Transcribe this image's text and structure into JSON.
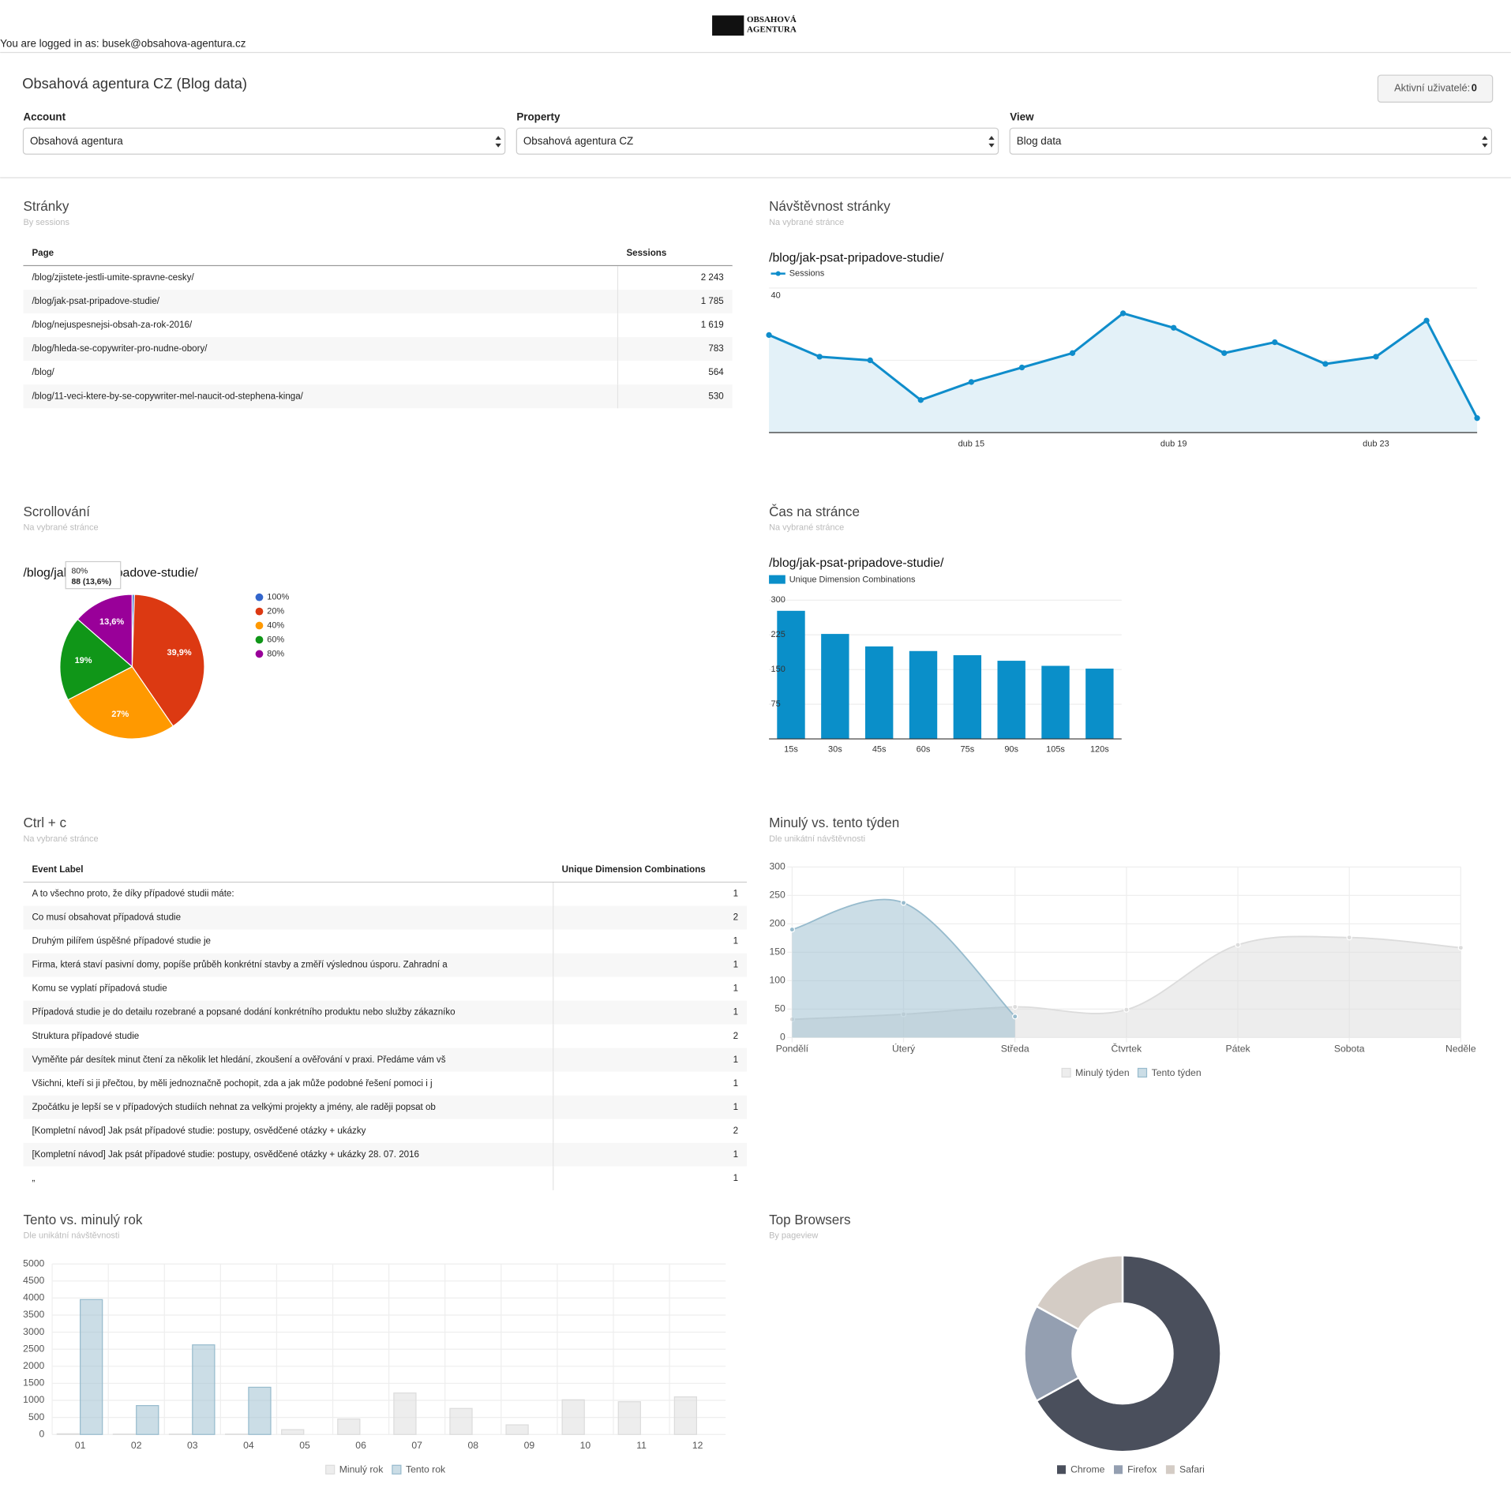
{
  "header": {
    "logo": [
      "OBSAHOVÁ",
      "AGENTURA"
    ],
    "logged_in": "You are logged in as: busek@obsahova-agentura.cz"
  },
  "title": "Obsahová agentura CZ (Blog data)",
  "active_users": {
    "label": "Aktivní uživatelé:",
    "value": 0
  },
  "filters": [
    {
      "label": "Account",
      "value": "Obsahová agentura"
    },
    {
      "label": "Property",
      "value": "Obsahová agentura CZ"
    },
    {
      "label": "View",
      "value": "Blog data"
    }
  ],
  "pages_table": {
    "title": "Stránky",
    "subtitle": "By sessions",
    "columns": [
      "Page",
      "Sessions"
    ],
    "rows": [
      [
        "/blog/zjistete-jestli-umite-spravne-cesky/",
        "2 243"
      ],
      [
        "/blog/jak-psat-pripadove-studie/",
        "1 785"
      ],
      [
        "/blog/nejuspesnejsi-obsah-za-rok-2016/",
        "1 619"
      ],
      [
        "/blog/hleda-se-copywriter-pro-nudne-obory/",
        "783"
      ],
      [
        "/blog/",
        "564"
      ],
      [
        "/blog/11-veci-ktere-by-se-copywriter-mel-naucit-od-stephena-kinga/",
        "530"
      ]
    ]
  },
  "ctrl_table": {
    "title": "Ctrl + c",
    "subtitle": "Na vybrané stránce",
    "columns": [
      "Event Label",
      "Unique Dimension Combinations"
    ],
    "rows": [
      [
        "A to všechno proto, že díky případové studii máte:",
        "1"
      ],
      [
        "Co musí obsahovat případová studie",
        "2"
      ],
      [
        "Druhým pilířem úspěšné případové studie je",
        "1"
      ],
      [
        "Firma, která staví pasivní domy, popíše průběh konkrétní stavby a změří výslednou úsporu. Zahradní a",
        "1"
      ],
      [
        "Komu se vyplatí případová studie",
        "1"
      ],
      [
        "Případová studie je do detailu rozebrané a popsané dodání konkrétního produktu nebo služby zákazníko",
        "1"
      ],
      [
        "Struktura případové studie",
        "2"
      ],
      [
        "Vyměňte pár desítek minut čtení za několik let hledání, zkoušení a ověřování v praxi. Předáme vám vš",
        "1"
      ],
      [
        "Všichni, kteří si ji přečtou, by měli jednoznačně pochopit, zda a jak může podobné řešení pomoci i j",
        "1"
      ],
      [
        "Zpočátku je lepší se v případových studiích nehnat za velkými projekty a jmény, ale raději popsat ob",
        "1"
      ],
      [
        "[Kompletní návod] Jak psát případové studie: postupy, osvědčené otázky + ukázky",
        "2"
      ],
      [
        "[Kompletní návod] Jak psát případové studie: postupy, osvědčené otázky + ukázky 28. 07. 2016",
        "1"
      ],
      [
        "„",
        "1"
      ]
    ]
  },
  "chart_data": [
    {
      "type": "line",
      "title": "Návštěvnost stránky",
      "subtitle": "Na vybrané stránce",
      "heading": "/blog/jak-psat-pripadove-studie/",
      "categories": [
        null,
        null,
        null,
        null,
        "dub 15",
        null,
        null,
        null,
        "dub 19",
        null,
        null,
        null,
        "dub 23",
        null,
        null
      ],
      "series": [
        {
          "name": "Sessions",
          "color": "#0f8dcb",
          "values": [
            27,
            21,
            20,
            9,
            14,
            18,
            22,
            33,
            29,
            22,
            25,
            19,
            21,
            31,
            4
          ]
        }
      ],
      "ylim": [
        0,
        40
      ],
      "yticks": [
        20,
        40
      ],
      "grid": true
    },
    {
      "type": "pie",
      "title": "Scrollování",
      "subtitle": "Na vybrané stránce",
      "heading": "/blog/jak-psat-pripadove-studie/",
      "categories": [
        "100%",
        "20%",
        "40%",
        "60%",
        "80%"
      ],
      "values": [
        0.5,
        39.9,
        27,
        19,
        13.6
      ],
      "value_labels": [
        null,
        "39,9%",
        "27%",
        "19%",
        "13,6%"
      ],
      "colors": [
        "#3366cc",
        "#dc3912",
        "#ff9900",
        "#109618",
        "#990099"
      ],
      "tooltip": {
        "title": "80%",
        "body": "88 (13,6%)"
      }
    },
    {
      "type": "bar",
      "title": "Čas na stránce",
      "subtitle": "Na vybrané stránce",
      "heading": "/blog/jak-psat-pripadove-studie/",
      "categories": [
        "15s",
        "30s",
        "45s",
        "60s",
        "75s",
        "90s",
        "105s",
        "120s"
      ],
      "series": [
        {
          "name": "Unique Dimension Combinations",
          "color": "#0a8fc9",
          "values": [
            277,
            227,
            200,
            190,
            181,
            169,
            158,
            152
          ]
        }
      ],
      "ylim": [
        0,
        300
      ],
      "yticks": [
        75,
        150,
        225,
        300
      ],
      "grid": true
    },
    {
      "type": "area",
      "title": "Minulý vs. tento týden",
      "subtitle": "Dle unikátní návštěvnosti",
      "categories": [
        "Pondělí",
        "Úterý",
        "Středa",
        "Čtvrtek",
        "Pátek",
        "Sobota",
        "Neděle"
      ],
      "series": [
        {
          "name": "Minulý týden",
          "color": "#dcdcdc",
          "values": [
            32,
            41,
            54,
            49,
            163,
            176,
            158
          ]
        },
        {
          "name": "Tento týden",
          "color": "#97bbcd",
          "values": [
            190,
            237,
            37,
            null,
            null,
            null,
            null
          ]
        }
      ],
      "ylim": [
        0,
        300
      ],
      "yticks": [
        0,
        50,
        100,
        150,
        200,
        250,
        300
      ],
      "grid": true
    },
    {
      "type": "grouped-bar",
      "title": "Tento vs. minulý rok",
      "subtitle": "Dle unikátní návštěvnosti",
      "categories": [
        "01",
        "02",
        "03",
        "04",
        "05",
        "06",
        "07",
        "08",
        "09",
        "10",
        "11",
        "12"
      ],
      "series": [
        {
          "name": "Minulý rok",
          "color": "#dcdcdc",
          "values": [
            20,
            10,
            10,
            10,
            141,
            452,
            1215,
            763,
            282,
            1017,
            960,
            1102
          ]
        },
        {
          "name": "Tento rok",
          "color": "#97bbcd",
          "values": [
            3955,
            847,
            2627,
            1384,
            null,
            null,
            null,
            null,
            null,
            null,
            null,
            null
          ]
        }
      ],
      "ylim": [
        0,
        5000
      ],
      "yticks": [
        0,
        500,
        1000,
        1500,
        2000,
        2500,
        3000,
        3500,
        4000,
        4500,
        5000
      ],
      "grid": true
    },
    {
      "type": "doughnut",
      "title": "Top Browsers",
      "subtitle": "By pageview",
      "categories": [
        "Chrome",
        "Firefox",
        "Safari"
      ],
      "values": [
        67,
        16,
        17
      ],
      "colors": [
        "#4a4f5c",
        "#949fb1",
        "#d4ccc5"
      ]
    }
  ]
}
